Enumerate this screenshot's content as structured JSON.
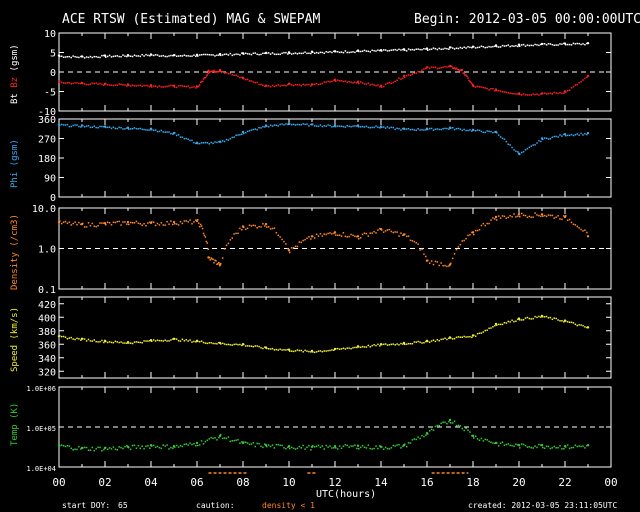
{
  "header": {
    "title": "ACE RTSW (Estimated) MAG & SWEPAM",
    "begin": "Begin: 2012-03-05 00:00:00UTC"
  },
  "footer": {
    "start_doy_label": "start DOY:",
    "start_doy": "65",
    "caution_label": "caution:",
    "caution_note": "density < 1",
    "created": "created: 2012-03-05 23:11:05UTC",
    "xlabel": "UTC(hours)"
  },
  "colors": {
    "bt": "#ffffff",
    "bz": "#ff2020",
    "phi": "#33aaee",
    "density": "#ff8822",
    "speed": "#eeee33",
    "temp": "#33cc33",
    "axis": "#ffffff"
  },
  "chart_data": [
    {
      "type": "scatter",
      "panel": "mag",
      "ylabel_parts": [
        "Bt",
        "Bz",
        "(gsm)"
      ],
      "ylim": [
        -10,
        10
      ],
      "yticks": [
        "10",
        "5",
        "0",
        "-5",
        "-10"
      ],
      "reference_line": 0,
      "series": [
        {
          "name": "Bt",
          "x": [
            0,
            1,
            2,
            3,
            4,
            5,
            6,
            7,
            8,
            9,
            10,
            11,
            12,
            13,
            14,
            15,
            16,
            17,
            18,
            19,
            20,
            21,
            22,
            23
          ],
          "values": [
            4.2,
            4.0,
            4.2,
            4.3,
            4.5,
            4.3,
            4.4,
            4.6,
            4.8,
            4.9,
            5.0,
            5.2,
            5.3,
            5.5,
            5.6,
            5.8,
            6.0,
            6.3,
            6.5,
            6.8,
            7.0,
            7.2,
            7.3,
            7.4
          ]
        },
        {
          "name": "Bz",
          "x": [
            0,
            1,
            2,
            3,
            4,
            5,
            6,
            6.5,
            7,
            8,
            9,
            10,
            11,
            12,
            13,
            14,
            15,
            16,
            17,
            17.5,
            18,
            19,
            20,
            21,
            22,
            23
          ],
          "values": [
            -2.5,
            -2.8,
            -3.0,
            -3.2,
            -3.4,
            -3.5,
            -3.7,
            0.3,
            0.5,
            -1.5,
            -3.5,
            -3.0,
            -3.2,
            -2.0,
            -2.5,
            -3.5,
            -1.0,
            1.2,
            1.5,
            0.5,
            -3.5,
            -4.5,
            -5.5,
            -5.5,
            -5.0,
            -1.0
          ]
        }
      ]
    },
    {
      "type": "scatter",
      "panel": "phi",
      "ylabel": "Phi (gsm)",
      "ylim": [
        0,
        360
      ],
      "yticks": [
        "360",
        "270",
        "180",
        "90",
        "0"
      ],
      "series": [
        {
          "name": "Phi",
          "x": [
            0,
            1,
            2,
            3,
            4,
            5,
            6,
            7,
            8,
            9,
            10,
            11,
            12,
            13,
            14,
            15,
            16,
            17,
            18,
            19,
            20,
            21,
            22,
            23
          ],
          "values": [
            335,
            330,
            325,
            320,
            315,
            295,
            250,
            255,
            300,
            330,
            340,
            335,
            330,
            330,
            325,
            315,
            315,
            320,
            310,
            300,
            200,
            270,
            290,
            295
          ]
        }
      ]
    },
    {
      "type": "scatter",
      "panel": "density",
      "ylabel": "Density (/cm3)",
      "yscale": "log",
      "ylim": [
        0.1,
        10
      ],
      "yticks": [
        "10.0",
        "1.0",
        "0.1"
      ],
      "reference_line": 1.0,
      "series": [
        {
          "name": "Density",
          "x": [
            0,
            1,
            2,
            3,
            4,
            5,
            6,
            6.5,
            7,
            8,
            9,
            10,
            11,
            12,
            13,
            14,
            15,
            16,
            17,
            18,
            19,
            20,
            21,
            22,
            23
          ],
          "values": [
            4.5,
            4.0,
            4.2,
            4.5,
            4.3,
            4.5,
            4.8,
            0.6,
            0.4,
            3.5,
            4.0,
            0.9,
            2.0,
            2.5,
            2.0,
            3.0,
            2.2,
            0.5,
            0.4,
            2.5,
            6.0,
            7.0,
            7.0,
            6.0,
            2.0
          ]
        }
      ]
    },
    {
      "type": "scatter",
      "panel": "speed",
      "ylabel": "Speed (km/s)",
      "ylim": [
        310,
        430
      ],
      "yticks": [
        "420",
        "400",
        "380",
        "360",
        "340",
        "320"
      ],
      "series": [
        {
          "name": "Speed",
          "x": [
            0,
            1,
            2,
            3,
            4,
            5,
            6,
            7,
            8,
            9,
            10,
            11,
            12,
            13,
            14,
            15,
            16,
            17,
            18,
            19,
            20,
            21,
            22,
            23
          ],
          "values": [
            372,
            368,
            365,
            363,
            366,
            368,
            365,
            362,
            360,
            355,
            352,
            350,
            353,
            357,
            360,
            362,
            365,
            370,
            373,
            390,
            398,
            402,
            395,
            385
          ]
        }
      ]
    },
    {
      "type": "scatter",
      "panel": "temp",
      "ylabel": "Temp (K)",
      "yscale": "log",
      "ylim": [
        10000,
        1000000
      ],
      "yticks": [
        "1.0E+06",
        "1.0E+05",
        "1.0E+04"
      ],
      "reference_line": 100000,
      "series": [
        {
          "name": "Temp",
          "x": [
            0,
            1,
            2,
            3,
            4,
            5,
            6,
            7,
            8,
            9,
            10,
            11,
            12,
            13,
            14,
            15,
            16,
            17,
            18,
            19,
            20,
            21,
            22,
            23
          ],
          "values": [
            35000,
            30000,
            30000,
            32000,
            35000,
            33000,
            40000,
            60000,
            40000,
            35000,
            33000,
            32000,
            33000,
            34000,
            32000,
            35000,
            70000,
            150000,
            60000,
            40000,
            35000,
            35000,
            33000,
            35000
          ]
        }
      ]
    }
  ],
  "xaxis": {
    "xlim": [
      0,
      24
    ],
    "ticks": [
      "00",
      "02",
      "04",
      "06",
      "08",
      "10",
      "12",
      "14",
      "16",
      "18",
      "20",
      "22",
      "00"
    ]
  },
  "caution_spans": [
    [
      6.5,
      8.2
    ],
    [
      10.8,
      11.2
    ],
    [
      16.2,
      17.8
    ]
  ]
}
